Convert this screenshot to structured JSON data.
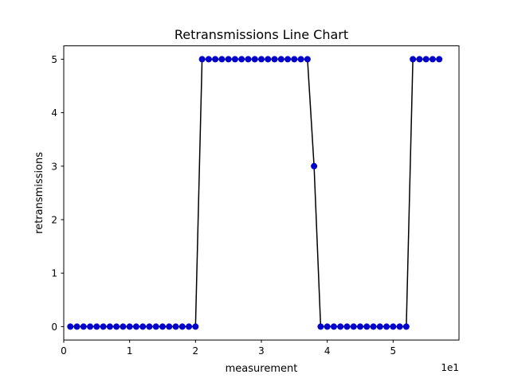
{
  "chart_data": {
    "type": "line",
    "title": "Retransmissions Line Chart",
    "xlabel": "measurement",
    "ylabel": "retransmissions",
    "x_offset_text": "1e1",
    "xlim": [
      0,
      60
    ],
    "ylim": [
      -0.25,
      5.25
    ],
    "xticks": [
      0,
      10,
      20,
      30,
      40,
      50
    ],
    "xtick_labels": [
      "0",
      "1",
      "2",
      "3",
      "4",
      "5"
    ],
    "yticks": [
      0,
      1,
      2,
      3,
      4,
      5
    ],
    "ytick_labels": [
      "0",
      "1",
      "2",
      "3",
      "4",
      "5"
    ],
    "grid": false,
    "colors": {
      "line": "#000000",
      "marker": "#0000cc"
    },
    "x": [
      1,
      2,
      3,
      4,
      5,
      6,
      7,
      8,
      9,
      10,
      11,
      12,
      13,
      14,
      15,
      16,
      17,
      18,
      19,
      20,
      21,
      22,
      23,
      24,
      25,
      26,
      27,
      28,
      29,
      30,
      31,
      32,
      33,
      34,
      35,
      36,
      37,
      38,
      39,
      40,
      41,
      42,
      43,
      44,
      45,
      46,
      47,
      48,
      49,
      50,
      51,
      52,
      53,
      54,
      55,
      56,
      57
    ],
    "series": [
      {
        "values": [
          0,
          0,
          0,
          0,
          0,
          0,
          0,
          0,
          0,
          0,
          0,
          0,
          0,
          0,
          0,
          0,
          0,
          0,
          0,
          0,
          5,
          5,
          5,
          5,
          5,
          5,
          5,
          5,
          5,
          5,
          5,
          5,
          5,
          5,
          5,
          5,
          5,
          3,
          0,
          0,
          0,
          0,
          0,
          0,
          0,
          0,
          0,
          0,
          0,
          0,
          0,
          0,
          5,
          5,
          5,
          5,
          5
        ]
      }
    ]
  }
}
